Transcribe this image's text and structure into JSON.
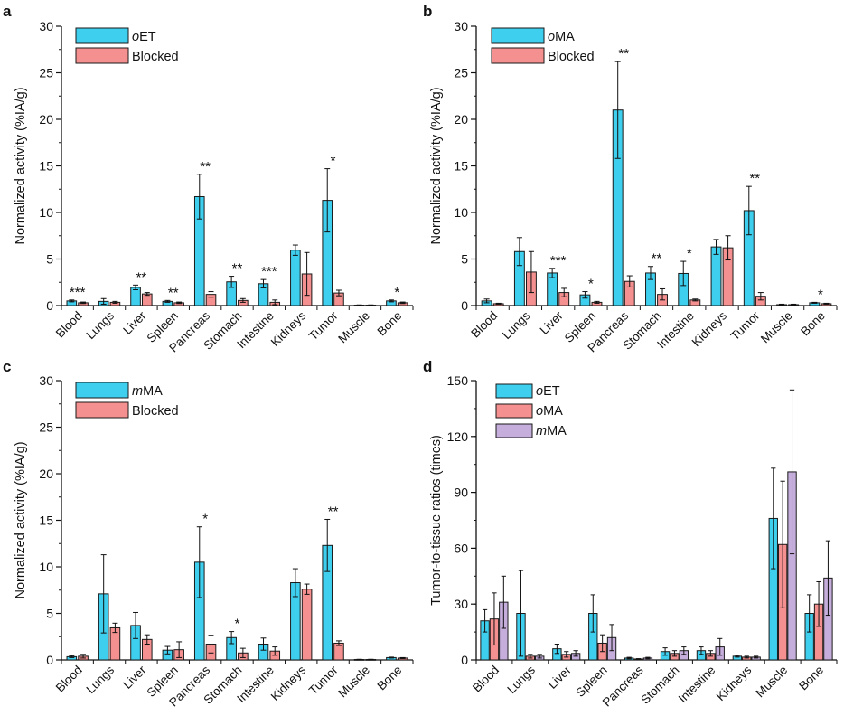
{
  "colors": {
    "oET": "#3ecfee",
    "Blocked": "#f4908f",
    "oMA": "#f4908f",
    "mMA": "#c6aedc",
    "stroke": "#1a1a1a"
  },
  "chart_data": [
    {
      "panel": "a",
      "type": "bar",
      "ylabel": "Normalized activity (%IA/g)",
      "ylim": [
        0,
        30
      ],
      "yticks": [
        0,
        5,
        10,
        15,
        20,
        25,
        30
      ],
      "categories": [
        "Blood",
        "Lungs",
        "Liver",
        "Spleen",
        "Pancreas",
        "Stomach",
        "Intestine",
        "Kidneys",
        "Tumor",
        "Muscle",
        "Bone"
      ],
      "legend": {
        "position": "top-left"
      },
      "series": [
        {
          "name": "oET",
          "name_prefix": "o",
          "name_rest": "ET",
          "color_key": "oET",
          "values": [
            0.5,
            0.45,
            1.95,
            0.45,
            11.7,
            2.55,
            2.35,
            5.95,
            11.3,
            0.05,
            0.5
          ],
          "errors": [
            0.1,
            0.3,
            0.25,
            0.1,
            2.4,
            0.6,
            0.45,
            0.55,
            3.4,
            0.02,
            0.1
          ]
        },
        {
          "name": "Blocked",
          "name_prefix": "",
          "name_rest": "Blocked",
          "color_key": "Blocked",
          "values": [
            0.3,
            0.35,
            1.25,
            0.3,
            1.2,
            0.55,
            0.35,
            3.4,
            1.35,
            0.05,
            0.3
          ],
          "errors": [
            0.08,
            0.1,
            0.15,
            0.08,
            0.3,
            0.2,
            0.25,
            2.3,
            0.3,
            0.02,
            0.08
          ]
        }
      ],
      "annotations": [
        "***",
        "",
        "**",
        "**",
        "**",
        "**",
        "***",
        "",
        "*",
        "",
        "*"
      ]
    },
    {
      "panel": "b",
      "type": "bar",
      "ylabel": "Normalized activity (%IA/g)",
      "ylim": [
        0,
        30
      ],
      "yticks": [
        0,
        5,
        10,
        15,
        20,
        25,
        30
      ],
      "categories": [
        "Blood",
        "Lungs",
        "Liver",
        "Spleen",
        "Pancreas",
        "Stomach",
        "Intestine",
        "Kidneys",
        "Tumor",
        "Muscle",
        "Bone"
      ],
      "legend": {
        "position": "top-left"
      },
      "series": [
        {
          "name": "oMA",
          "name_prefix": "o",
          "name_rest": "MA",
          "color_key": "oET",
          "values": [
            0.5,
            5.8,
            3.5,
            1.15,
            21.0,
            3.5,
            3.45,
            6.3,
            10.2,
            0.1,
            0.3
          ],
          "errors": [
            0.2,
            1.5,
            0.5,
            0.35,
            5.2,
            0.7,
            1.3,
            0.8,
            2.6,
            0.05,
            0.05
          ]
        },
        {
          "name": "Blocked",
          "name_prefix": "",
          "name_rest": "Blocked",
          "color_key": "Blocked",
          "values": [
            0.2,
            3.6,
            1.4,
            0.35,
            2.6,
            1.2,
            0.6,
            6.2,
            1.0,
            0.1,
            0.2
          ],
          "errors": [
            0.05,
            2.2,
            0.45,
            0.1,
            0.6,
            0.6,
            0.1,
            1.3,
            0.4,
            0.05,
            0.05
          ]
        }
      ],
      "annotations": [
        "",
        "",
        "***",
        "*",
        "**",
        "**",
        "*",
        "",
        "**",
        "",
        "*"
      ]
    },
    {
      "panel": "c",
      "type": "bar",
      "ylabel": "Normalized activity (%IA/g)",
      "ylim": [
        0,
        30
      ],
      "yticks": [
        0,
        5,
        10,
        15,
        20,
        25,
        30
      ],
      "categories": [
        "Blood",
        "Lungs",
        "Liver",
        "Spleen",
        "Pancreas",
        "Stomach",
        "Intestine",
        "Kidneys",
        "Tumor",
        "Muscle",
        "Bone"
      ],
      "legend": {
        "position": "top-left"
      },
      "series": [
        {
          "name": "mMA",
          "name_prefix": "m",
          "name_rest": "MA",
          "color_key": "oET",
          "values": [
            0.35,
            7.1,
            3.7,
            1.05,
            10.5,
            2.4,
            1.7,
            8.3,
            12.3,
            0.05,
            0.25
          ],
          "errors": [
            0.1,
            4.2,
            1.4,
            0.4,
            3.8,
            0.65,
            0.65,
            1.5,
            2.8,
            0.02,
            0.05
          ]
        },
        {
          "name": "Blocked",
          "name_prefix": "",
          "name_rest": "Blocked",
          "color_key": "Blocked",
          "values": [
            0.4,
            3.45,
            2.2,
            1.1,
            1.7,
            0.75,
            0.95,
            7.6,
            1.8,
            0.05,
            0.2
          ],
          "errors": [
            0.2,
            0.5,
            0.5,
            0.85,
            0.95,
            0.5,
            0.45,
            0.55,
            0.25,
            0.02,
            0.05
          ]
        }
      ],
      "annotations": [
        "",
        "",
        "",
        "",
        "*",
        "*",
        "",
        "",
        "**",
        "",
        ""
      ]
    },
    {
      "panel": "d",
      "type": "bar",
      "ylabel": "Tumor-to-tissue ratios (times)",
      "ylim": [
        0,
        150
      ],
      "yticks": [
        0,
        30,
        60,
        90,
        120,
        150
      ],
      "categories": [
        "Blood",
        "Lungs",
        "Liver",
        "Spleen",
        "Pancreas",
        "Stomach",
        "Intestine",
        "Kidneys",
        "Muscle",
        "Bone"
      ],
      "legend": {
        "position": "top-left"
      },
      "series": [
        {
          "name": "oET",
          "name_prefix": "o",
          "name_rest": "ET",
          "color_key": "oET",
          "values": [
            21,
            25,
            6,
            25,
            1,
            4.5,
            5,
            2,
            76,
            25
          ],
          "errors": [
            6,
            23,
            2.5,
            10,
            0.4,
            2,
            2,
            0.5,
            27,
            10
          ]
        },
        {
          "name": "oMA",
          "name_prefix": "o",
          "name_rest": "MA",
          "color_key": "oMA",
          "values": [
            22,
            2,
            3,
            9,
            0.5,
            3.5,
            3.5,
            1.5,
            62,
            30
          ],
          "errors": [
            14,
            1,
            1.5,
            4.5,
            0.2,
            1.5,
            1.5,
            0.5,
            34,
            12
          ]
        },
        {
          "name": "mMA",
          "name_prefix": "m",
          "name_rest": "MA",
          "color_key": "mMA",
          "values": [
            31,
            2,
            3.5,
            12,
            1,
            5,
            7,
            1.5,
            101,
            44
          ],
          "errors": [
            14,
            1,
            1.5,
            7,
            0.4,
            2,
            4.5,
            0.5,
            44,
            20
          ]
        }
      ],
      "annotations": []
    }
  ]
}
